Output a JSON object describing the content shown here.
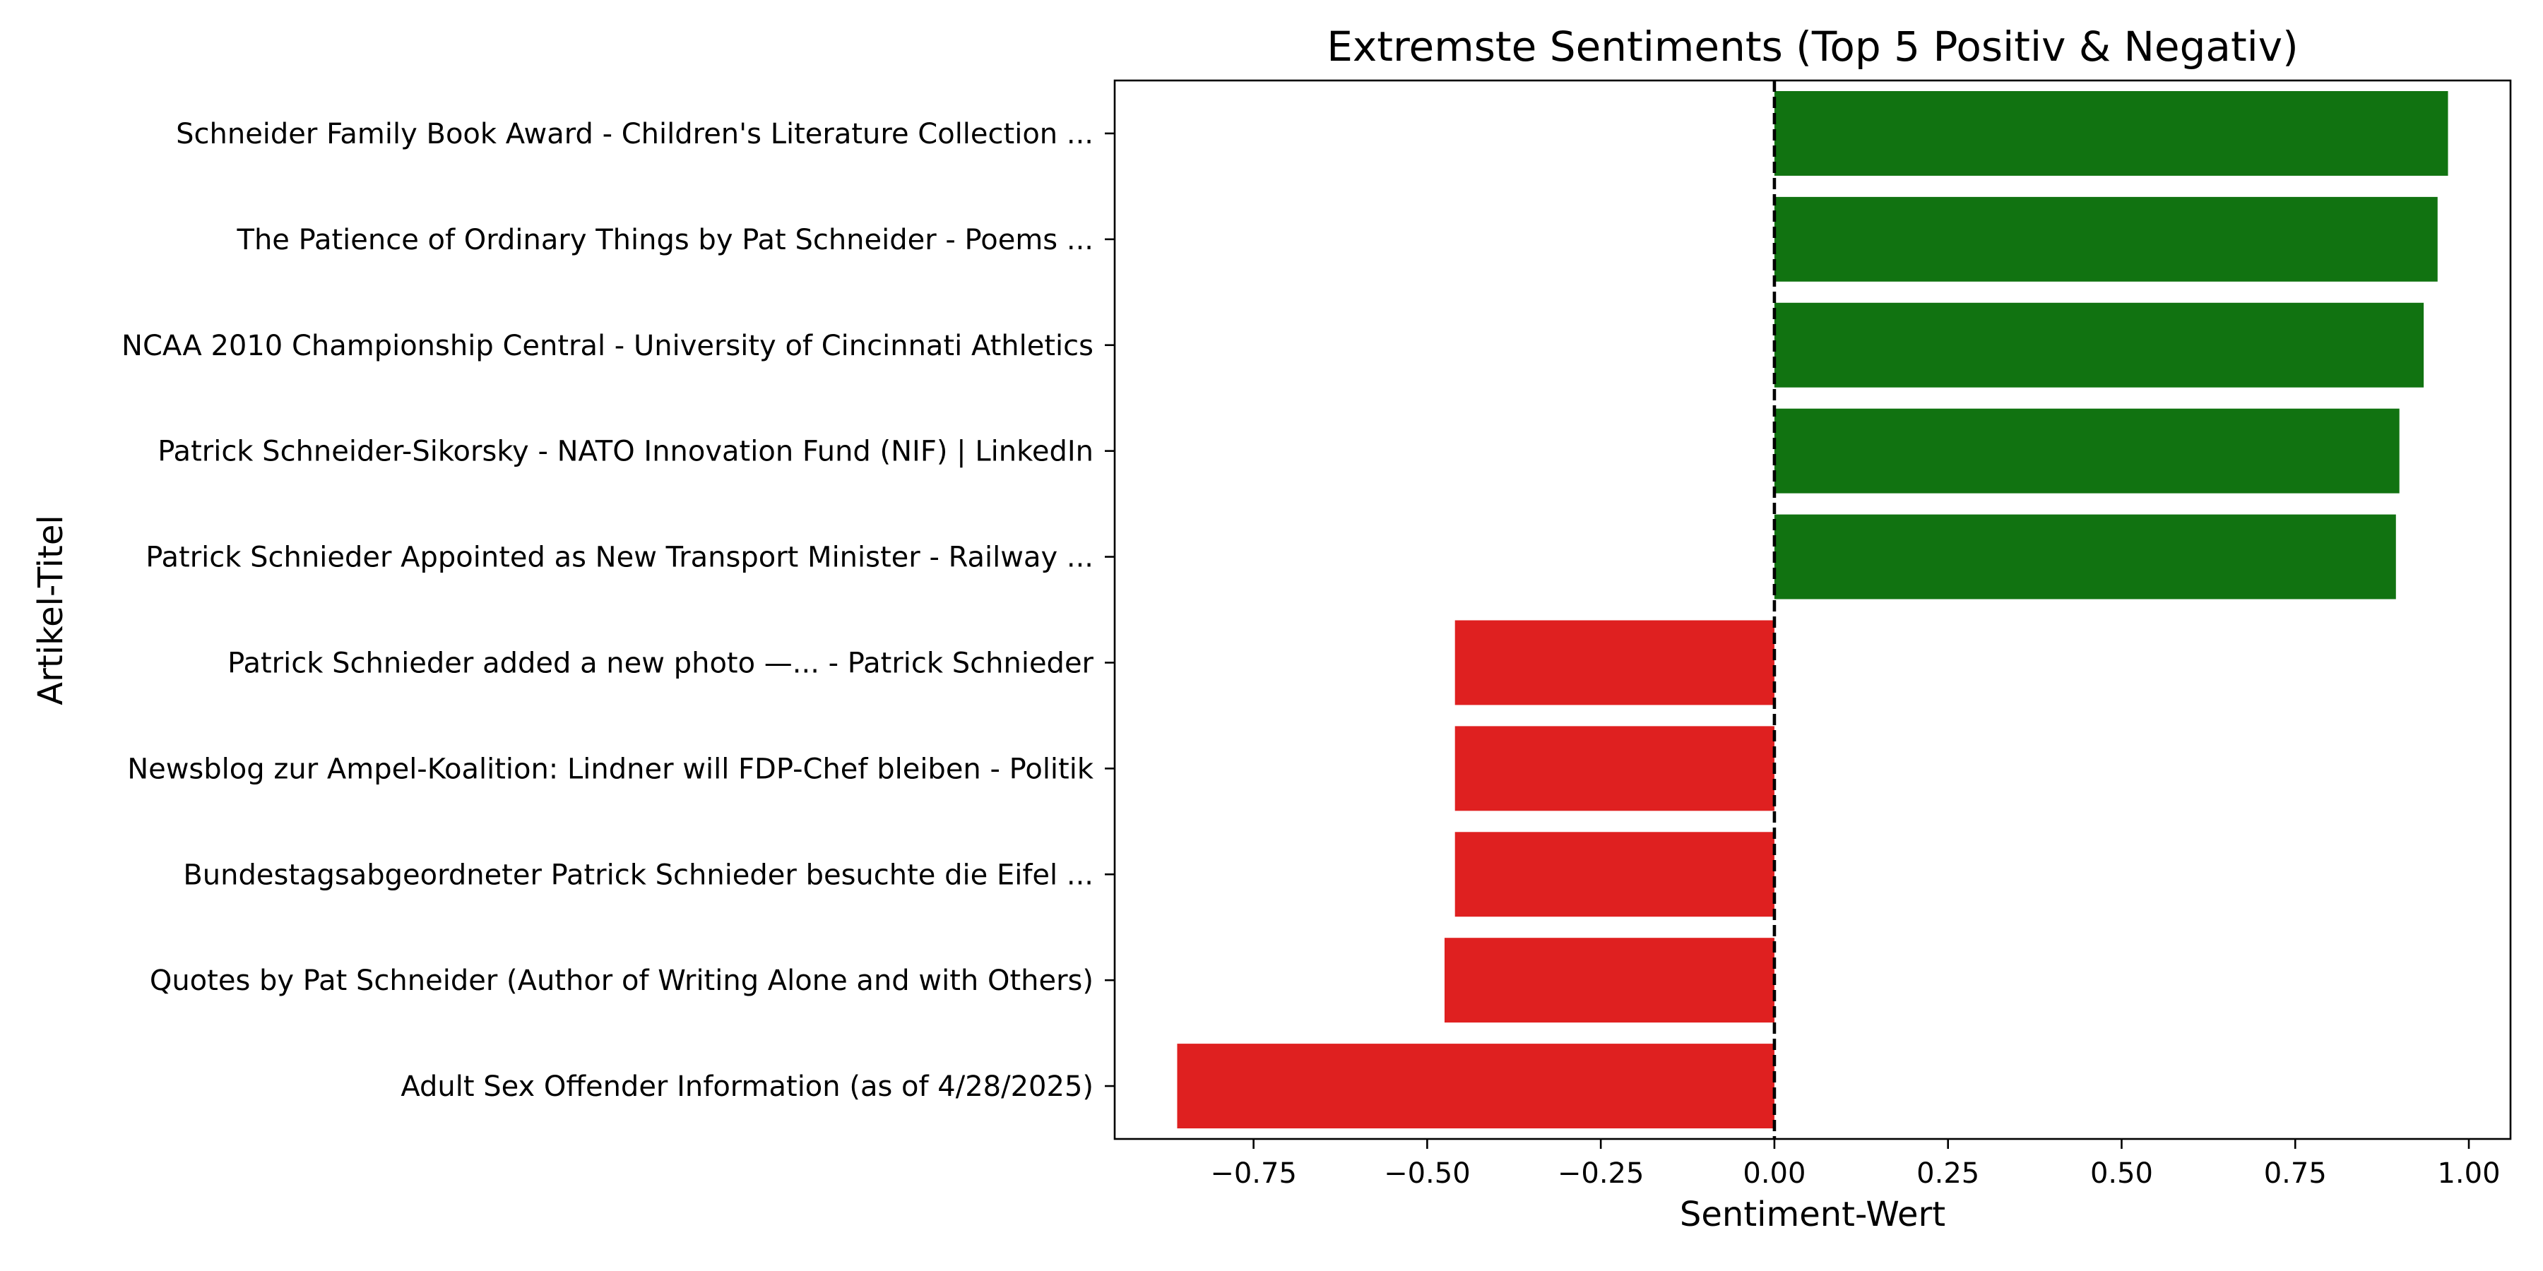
{
  "chart_data": {
    "type": "bar",
    "orientation": "horizontal",
    "title": "Extremste Sentiments (Top 5 Positiv & Negativ)",
    "xlabel": "Sentiment-Wert",
    "ylabel": "Artikel-Titel",
    "xlim": [
      -0.95,
      1.06
    ],
    "xticks": [
      -0.75,
      -0.5,
      -0.25,
      0.0,
      0.25,
      0.5,
      0.75,
      1.0
    ],
    "xtick_labels": [
      "−0.75",
      "−0.50",
      "−0.25",
      "0.00",
      "0.25",
      "0.50",
      "0.75",
      "1.00"
    ],
    "reference_line": {
      "x": 0.0,
      "style": "dashed",
      "color": "#000000"
    },
    "grid": false,
    "legend": "none",
    "colors": {
      "positive": "#117311",
      "negative": "#df2020"
    },
    "categories": [
      "Schneider Family Book Award - Children's Literature Collection ...",
      "The Patience of Ordinary Things by Pat Schneider - Poems ...",
      "NCAA 2010 Championship Central - University of Cincinnati Athletics",
      "Patrick Schneider-Sikorsky - NATO Innovation Fund (NIF) | LinkedIn",
      "Patrick Schnieder Appointed as New Transport Minister - Railway ...",
      "Patrick Schnieder added a new photo —... - Patrick Schnieder",
      "Newsblog zur Ampel-Koalition: Lindner will FDP-Chef bleiben - Politik",
      "Bundestagsabgeordneter Patrick Schnieder besuchte die Eifel ...",
      "Quotes by Pat Schneider (Author of Writing Alone and with Others)",
      "Adult Sex Offender Information (as of 4/28/2025)"
    ],
    "values": [
      0.97,
      0.955,
      0.935,
      0.9,
      0.895,
      -0.46,
      -0.46,
      -0.46,
      -0.475,
      -0.86
    ]
  }
}
